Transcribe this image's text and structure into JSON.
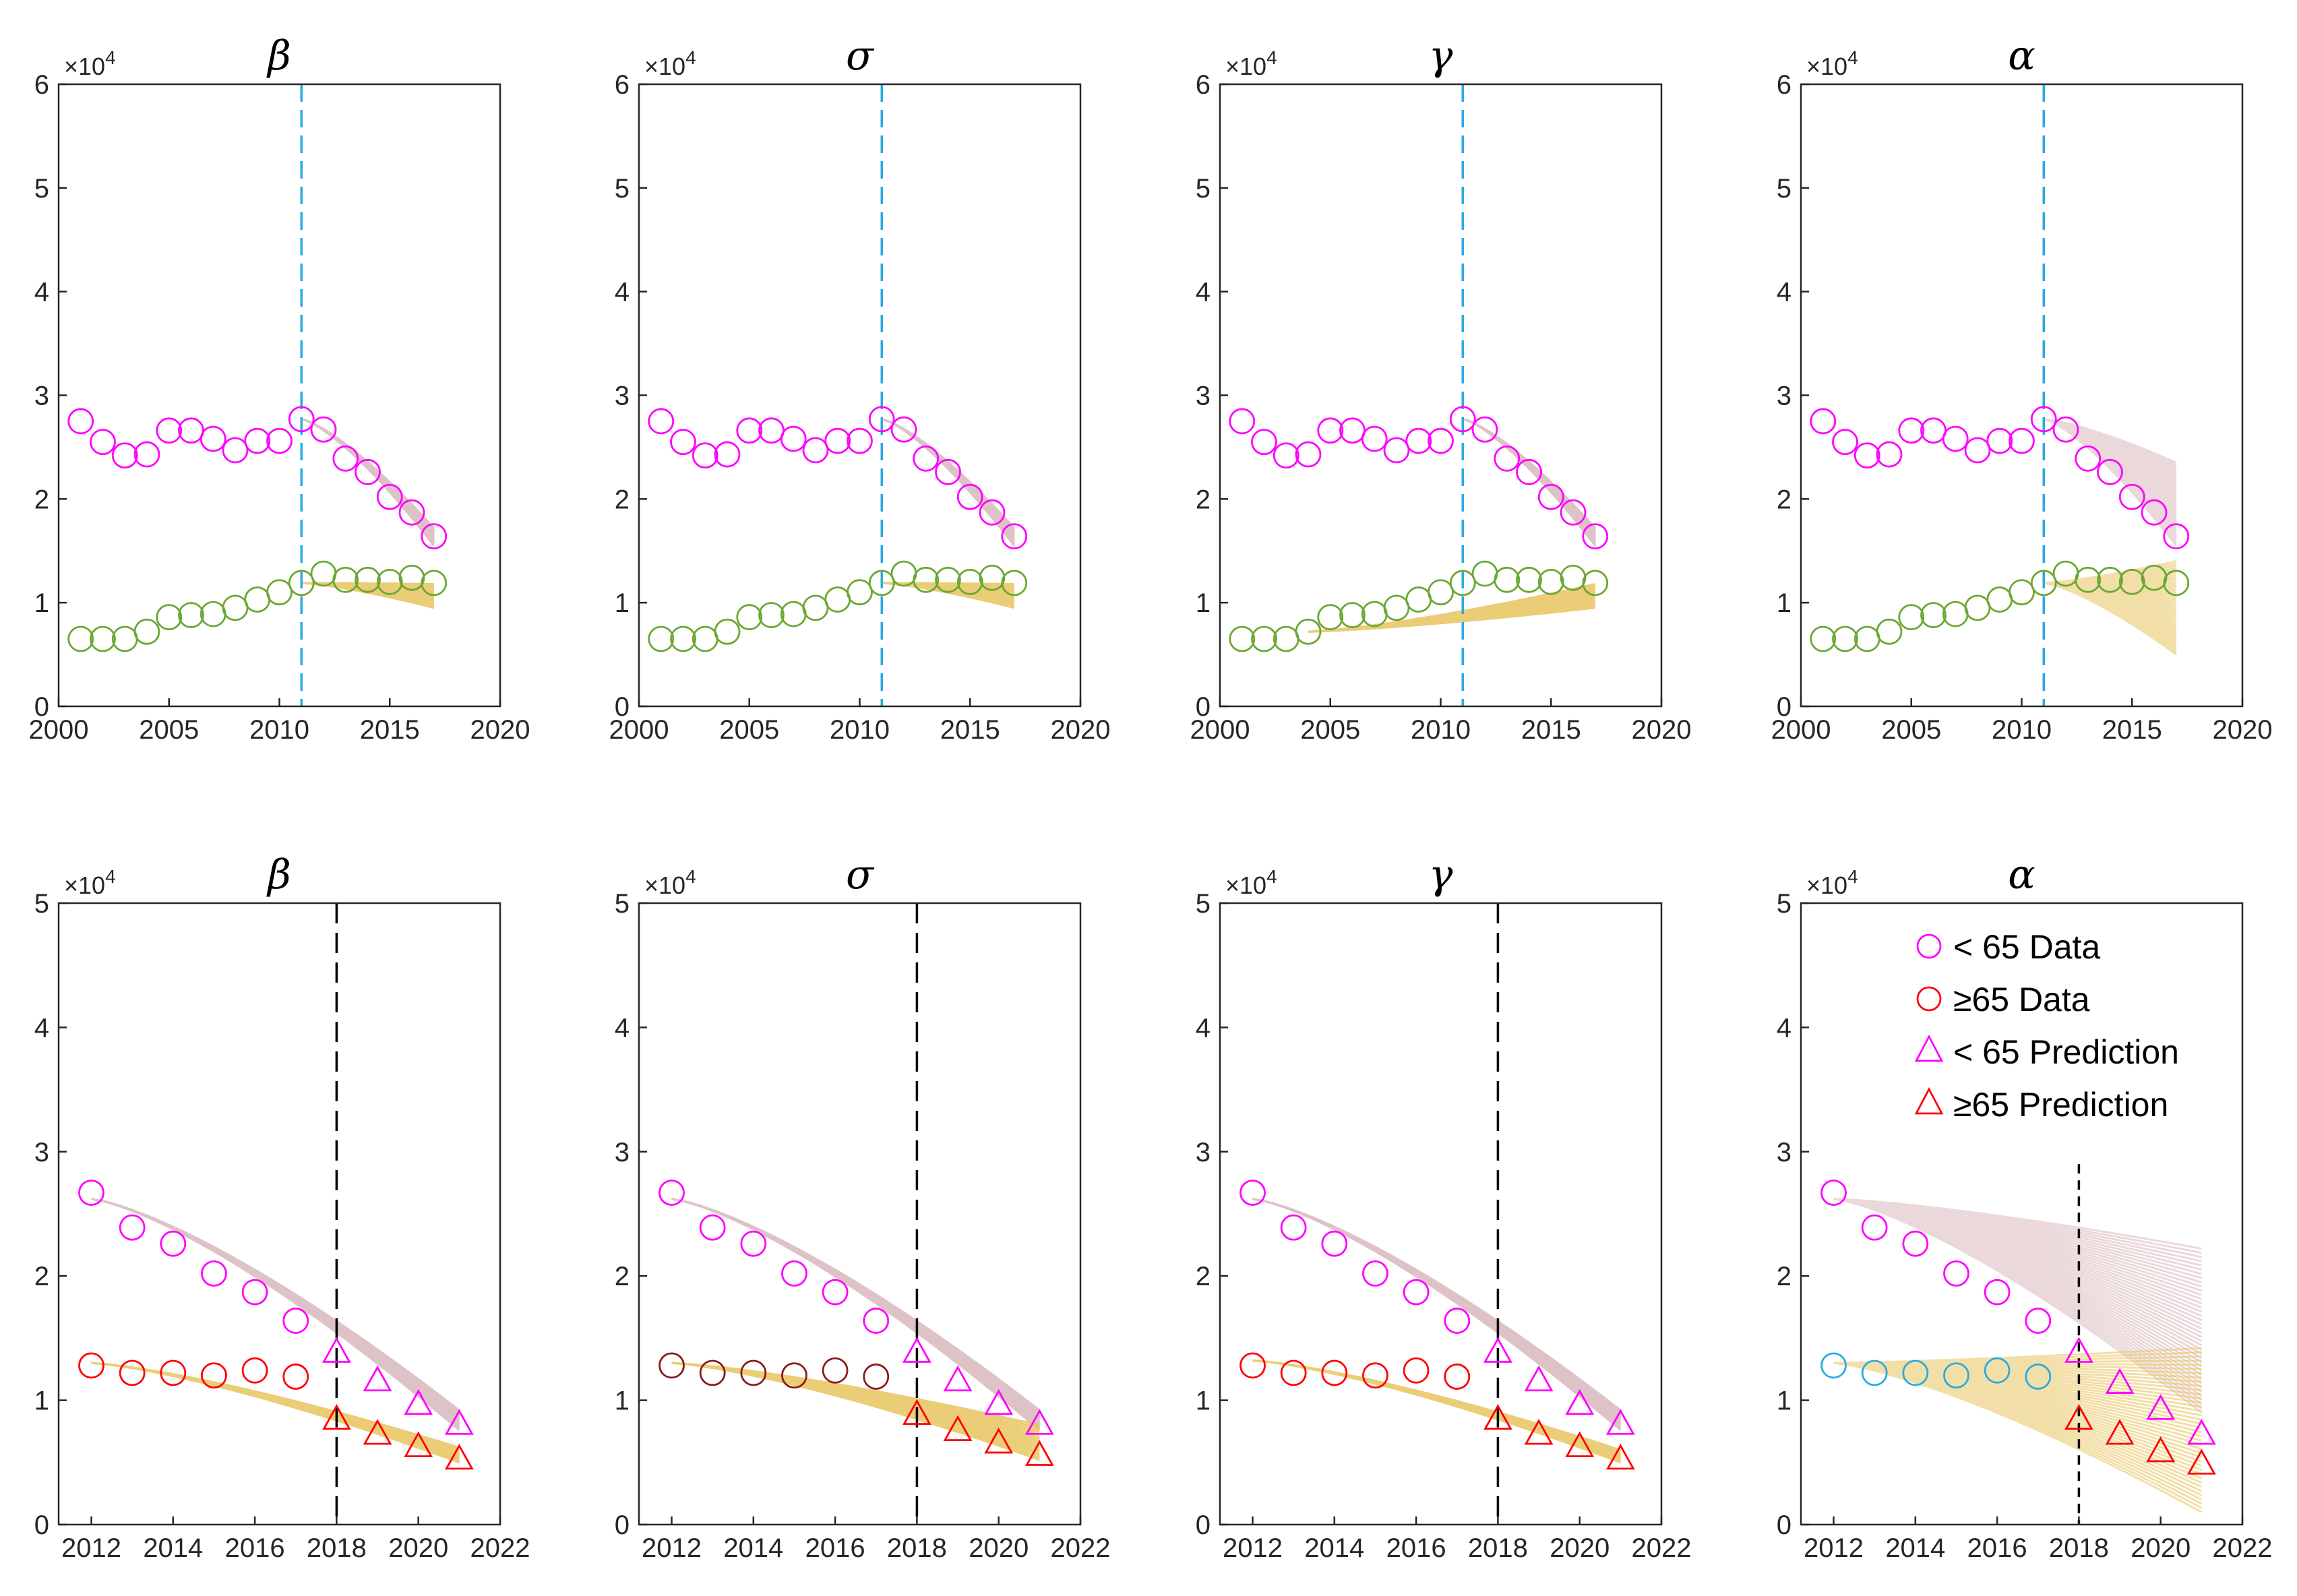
{
  "exponent_label": "×10",
  "exponent_power": "4",
  "colors": {
    "young": "#ff00ff",
    "old_top": "#6aa832",
    "old_bottom": "#ff0000",
    "old_dark": "#8b1a1a",
    "old_alpha": "#29abe2",
    "band_young": "#d9b9bd",
    "band_old": "#e8c560",
    "cutoff_top": "#29abe2",
    "cutoff_bottom": "#000000"
  },
  "legend": {
    "items": [
      {
        "label": "< 65 Data",
        "marker": "circle",
        "color": "#ff00ff"
      },
      {
        "label": "≥65 Data",
        "marker": "circle",
        "color": "#ff0000"
      },
      {
        "label": "< 65 Prediction",
        "marker": "triangle",
        "color": "#ff00ff"
      },
      {
        "label": "≥65 Prediction",
        "marker": "triangle",
        "color": "#ff0000"
      }
    ]
  },
  "chart_data": [
    {
      "type": "scatter",
      "title": "β",
      "row": "top",
      "x_ticks": [
        "2000",
        "2005",
        "2010",
        "2015",
        "2020"
      ],
      "y_ticks": [
        "0",
        "1",
        "2",
        "3",
        "4",
        "5",
        "6"
      ],
      "xlim": [
        2000,
        2020
      ],
      "ylim": [
        0,
        6
      ],
      "cutoff": 2011,
      "years": [
        2001,
        2002,
        2003,
        2004,
        2005,
        2006,
        2007,
        2008,
        2009,
        2010,
        2011,
        2012,
        2013,
        2014,
        2015,
        2016,
        2017
      ],
      "series": [
        {
          "name": "< 65 Data",
          "values": [
            2.75,
            2.55,
            2.42,
            2.43,
            2.66,
            2.66,
            2.58,
            2.47,
            2.56,
            2.56,
            2.77,
            2.67,
            2.39,
            2.26,
            2.02,
            1.87,
            1.64
          ]
        },
        {
          "name": "≥65 Data",
          "values": [
            0.65,
            0.65,
            0.65,
            0.72,
            0.86,
            0.88,
            0.89,
            0.95,
            1.03,
            1.1,
            1.19,
            1.28,
            1.22,
            1.22,
            1.2,
            1.24,
            1.19
          ]
        }
      ],
      "bands": [
        {
          "name": "< 65 fit",
          "x_start": 2011,
          "start": 2.77,
          "x_end": 2017,
          "low": 1.55,
          "high": 1.72
        },
        {
          "name": "≥65 fit",
          "x_start": 2011,
          "start": 1.19,
          "x_end": 2017,
          "low": 0.95,
          "high": 1.18
        }
      ]
    },
    {
      "type": "scatter",
      "title": "σ",
      "row": "top",
      "x_ticks": [
        "2000",
        "2005",
        "2010",
        "2015",
        "2020"
      ],
      "y_ticks": [
        "0",
        "1",
        "2",
        "3",
        "4",
        "5",
        "6"
      ],
      "xlim": [
        2000,
        2020
      ],
      "ylim": [
        0,
        6
      ],
      "cutoff": 2011,
      "years": [
        2001,
        2002,
        2003,
        2004,
        2005,
        2006,
        2007,
        2008,
        2009,
        2010,
        2011,
        2012,
        2013,
        2014,
        2015,
        2016,
        2017
      ],
      "series": [
        {
          "name": "< 65 Data",
          "values": [
            2.75,
            2.55,
            2.42,
            2.43,
            2.66,
            2.66,
            2.58,
            2.47,
            2.56,
            2.56,
            2.77,
            2.67,
            2.39,
            2.26,
            2.02,
            1.87,
            1.64
          ]
        },
        {
          "name": "≥65 Data",
          "values": [
            0.65,
            0.65,
            0.65,
            0.72,
            0.86,
            0.88,
            0.89,
            0.95,
            1.03,
            1.1,
            1.19,
            1.28,
            1.22,
            1.22,
            1.2,
            1.24,
            1.19
          ]
        }
      ],
      "bands": [
        {
          "name": "< 65 fit",
          "x_start": 2011,
          "start": 2.77,
          "x_end": 2017,
          "low": 1.55,
          "high": 1.72
        },
        {
          "name": "≥65 fit",
          "x_start": 2011,
          "start": 1.19,
          "x_end": 2017,
          "low": 0.95,
          "high": 1.18
        }
      ]
    },
    {
      "type": "scatter",
      "title": "γ",
      "row": "top",
      "x_ticks": [
        "2000",
        "2005",
        "2010",
        "2015",
        "2020"
      ],
      "y_ticks": [
        "0",
        "1",
        "2",
        "3",
        "4",
        "5",
        "6"
      ],
      "xlim": [
        2000,
        2020
      ],
      "ylim": [
        0,
        6
      ],
      "cutoff": 2011,
      "years": [
        2001,
        2002,
        2003,
        2004,
        2005,
        2006,
        2007,
        2008,
        2009,
        2010,
        2011,
        2012,
        2013,
        2014,
        2015,
        2016,
        2017
      ],
      "series": [
        {
          "name": "< 65 Data",
          "values": [
            2.75,
            2.55,
            2.42,
            2.43,
            2.66,
            2.66,
            2.58,
            2.47,
            2.56,
            2.56,
            2.77,
            2.67,
            2.39,
            2.26,
            2.02,
            1.87,
            1.64
          ]
        },
        {
          "name": "≥65 Data",
          "values": [
            0.65,
            0.65,
            0.65,
            0.72,
            0.86,
            0.88,
            0.89,
            0.95,
            1.03,
            1.1,
            1.19,
            1.28,
            1.22,
            1.22,
            1.2,
            1.24,
            1.19
          ]
        }
      ],
      "bands": [
        {
          "name": "< 65 fit",
          "x_start": 2011,
          "start": 2.77,
          "x_end": 2017,
          "low": 1.55,
          "high": 1.72
        },
        {
          "name": "≥65 fit",
          "x_start": 2004,
          "start": 0.72,
          "x_end": 2017,
          "low": 0.95,
          "high": 1.18
        }
      ]
    },
    {
      "type": "scatter",
      "title": "α",
      "row": "top",
      "x_ticks": [
        "2000",
        "2005",
        "2010",
        "2015",
        "2020"
      ],
      "y_ticks": [
        "0",
        "1",
        "2",
        "3",
        "4",
        "5",
        "6"
      ],
      "xlim": [
        2000,
        2020
      ],
      "ylim": [
        0,
        6
      ],
      "cutoff": 2011,
      "years": [
        2001,
        2002,
        2003,
        2004,
        2005,
        2006,
        2007,
        2008,
        2009,
        2010,
        2011,
        2012,
        2013,
        2014,
        2015,
        2016,
        2017
      ],
      "series": [
        {
          "name": "< 65 Data",
          "values": [
            2.75,
            2.55,
            2.42,
            2.43,
            2.66,
            2.66,
            2.58,
            2.47,
            2.56,
            2.56,
            2.77,
            2.67,
            2.39,
            2.26,
            2.02,
            1.87,
            1.64
          ]
        },
        {
          "name": "≥65 Data",
          "values": [
            0.65,
            0.65,
            0.65,
            0.72,
            0.86,
            0.88,
            0.89,
            0.95,
            1.03,
            1.1,
            1.19,
            1.28,
            1.22,
            1.22,
            1.2,
            1.24,
            1.19
          ]
        }
      ],
      "bands": [
        {
          "name": "< 65 fit",
          "x_start": 2011,
          "start": 2.77,
          "x_end": 2017,
          "low": 1.55,
          "high": 2.35
        },
        {
          "name": "≥65 fit",
          "x_start": 2011,
          "start": 1.19,
          "x_end": 2017,
          "low": 0.5,
          "high": 1.4
        }
      ]
    },
    {
      "type": "scatter",
      "title": "β",
      "row": "bottom",
      "x_ticks": [
        "2012",
        "2014",
        "2016",
        "2018",
        "2020",
        "2022"
      ],
      "y_ticks": [
        "0",
        "1",
        "2",
        "3",
        "4",
        "5"
      ],
      "xlim": [
        2011.2,
        2022
      ],
      "ylim": [
        0,
        5
      ],
      "cutoff": 2018,
      "data_years": [
        2012,
        2013,
        2014,
        2015,
        2016,
        2017
      ],
      "pred_years": [
        2018,
        2019,
        2020,
        2021
      ],
      "series": [
        {
          "name": "< 65 Data",
          "values": [
            2.67,
            2.39,
            2.26,
            2.02,
            1.87,
            1.64
          ]
        },
        {
          "name": "≥65 Data",
          "values": [
            1.28,
            1.22,
            1.22,
            1.2,
            1.24,
            1.19
          ]
        },
        {
          "name": "< 65 Prediction",
          "values": [
            1.38,
            1.15,
            0.96,
            0.8
          ]
        },
        {
          "name": "≥65 Prediction",
          "values": [
            0.84,
            0.72,
            0.62,
            0.52
          ]
        }
      ],
      "bands": [
        {
          "name": "< 65 fit",
          "x_start": 2012,
          "start": 2.62,
          "x_end": 2021,
          "low": 0.76,
          "high": 0.92
        },
        {
          "name": "≥65 fit",
          "x_start": 2012,
          "start": 1.3,
          "x_end": 2021,
          "low": 0.5,
          "high": 0.62
        }
      ]
    },
    {
      "type": "scatter",
      "title": "σ",
      "row": "bottom",
      "x_ticks": [
        "2012",
        "2014",
        "2016",
        "2018",
        "2020",
        "2022"
      ],
      "y_ticks": [
        "0",
        "1",
        "2",
        "3",
        "4",
        "5"
      ],
      "xlim": [
        2011.2,
        2022
      ],
      "ylim": [
        0,
        5
      ],
      "cutoff": 2018,
      "data_years": [
        2012,
        2013,
        2014,
        2015,
        2016,
        2017
      ],
      "pred_years": [
        2018,
        2019,
        2020,
        2021
      ],
      "series": [
        {
          "name": "< 65 Data",
          "values": [
            2.67,
            2.39,
            2.26,
            2.02,
            1.87,
            1.64
          ]
        },
        {
          "name": "≥65 Data",
          "values": [
            1.28,
            1.22,
            1.22,
            1.2,
            1.24,
            1.19
          ]
        },
        {
          "name": "< 65 Prediction",
          "values": [
            1.38,
            1.15,
            0.96,
            0.8
          ]
        },
        {
          "name": "≥65 Prediction",
          "values": [
            0.88,
            0.75,
            0.65,
            0.55
          ]
        }
      ],
      "bands": [
        {
          "name": "< 65 fit",
          "x_start": 2012,
          "start": 2.62,
          "x_end": 2021,
          "low": 0.76,
          "high": 0.92
        },
        {
          "name": "≥65 fit",
          "x_start": 2012,
          "start": 1.3,
          "x_end": 2021,
          "low": 0.52,
          "high": 0.8
        }
      ]
    },
    {
      "type": "scatter",
      "title": "γ",
      "row": "bottom",
      "x_ticks": [
        "2012",
        "2014",
        "2016",
        "2018",
        "2020",
        "2022"
      ],
      "y_ticks": [
        "0",
        "1",
        "2",
        "3",
        "4",
        "5"
      ],
      "xlim": [
        2011.2,
        2022
      ],
      "ylim": [
        0,
        5
      ],
      "cutoff": 2018,
      "data_years": [
        2012,
        2013,
        2014,
        2015,
        2016,
        2017
      ],
      "pred_years": [
        2018,
        2019,
        2020,
        2021
      ],
      "series": [
        {
          "name": "< 65 Data",
          "values": [
            2.67,
            2.39,
            2.26,
            2.02,
            1.87,
            1.64
          ]
        },
        {
          "name": "≥65 Data",
          "values": [
            1.28,
            1.22,
            1.22,
            1.2,
            1.24,
            1.19
          ]
        },
        {
          "name": "< 65 Prediction",
          "values": [
            1.38,
            1.15,
            0.96,
            0.8
          ]
        },
        {
          "name": "≥65 Prediction",
          "values": [
            0.84,
            0.72,
            0.62,
            0.52
          ]
        }
      ],
      "bands": [
        {
          "name": "< 65 fit",
          "x_start": 2012,
          "start": 2.62,
          "x_end": 2021,
          "low": 0.76,
          "high": 0.92
        },
        {
          "name": "≥65 fit",
          "x_start": 2012,
          "start": 1.32,
          "x_end": 2021,
          "low": 0.5,
          "high": 0.6
        }
      ]
    },
    {
      "type": "scatter",
      "title": "α",
      "row": "bottom",
      "x_ticks": [
        "2012",
        "2014",
        "2016",
        "2018",
        "2020",
        "2022"
      ],
      "y_ticks": [
        "0",
        "1",
        "2",
        "3",
        "4",
        "5"
      ],
      "xlim": [
        2011.2,
        2022
      ],
      "ylim": [
        0,
        5
      ],
      "cutoff": 2018,
      "data_years": [
        2012,
        2013,
        2014,
        2015,
        2016,
        2017
      ],
      "pred_years": [
        2018,
        2019,
        2020,
        2021
      ],
      "series": [
        {
          "name": "< 65 Data",
          "values": [
            2.67,
            2.39,
            2.26,
            2.02,
            1.87,
            1.64
          ]
        },
        {
          "name": "≥65 Data",
          "values": [
            1.28,
            1.22,
            1.22,
            1.2,
            1.24,
            1.19
          ]
        },
        {
          "name": "< 65 Prediction",
          "values": [
            1.38,
            1.13,
            0.92,
            0.72
          ]
        },
        {
          "name": "≥65 Prediction",
          "values": [
            0.84,
            0.72,
            0.58,
            0.48
          ]
        }
      ],
      "bands": [
        {
          "name": "< 65 fit",
          "x_start": 2012,
          "start": 2.62,
          "x_end": 2021,
          "low": 0.9,
          "high": 2.22
        },
        {
          "name": "≥65 fit",
          "x_start": 2012,
          "start": 1.3,
          "x_end": 2021,
          "low": 0.1,
          "high": 1.42
        }
      ]
    }
  ]
}
